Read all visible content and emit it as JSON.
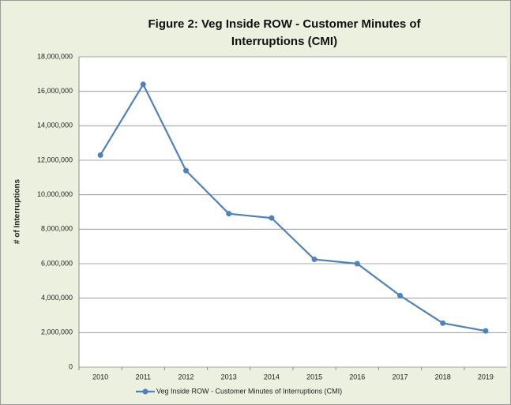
{
  "chart_data": {
    "type": "line",
    "title": "Figure 2:  Veg Inside ROW - Customer Minutes of Interruptions (CMI)",
    "y_label": "# of Interruptions",
    "categories": [
      "2010",
      "2011",
      "2012",
      "2013",
      "2014",
      "2015",
      "2016",
      "2017",
      "2018",
      "2019"
    ],
    "series": [
      {
        "name": "Veg Inside ROW - Customer Minutes of Interruptions (CMI)",
        "color": "#4f81bd",
        "values": [
          12300000,
          16400000,
          11400000,
          8900000,
          8650000,
          6250000,
          6000000,
          4150000,
          2550000,
          2100000
        ]
      }
    ],
    "ylim": [
      0,
      18000000
    ],
    "yticks": [
      0,
      {
        "value": 2000000,
        "label": "2,000,000"
      },
      {
        "value": 4000000,
        "label": "4,000,000"
      },
      {
        "value": 6000000,
        "label": "6,000,000"
      },
      {
        "value": 8000000,
        "label": "8,000,000"
      },
      {
        "value": 10000000,
        "label": "10,000,000"
      },
      {
        "value": 12000000,
        "label": "12,000,000"
      },
      {
        "value": 14000000,
        "label": "14,000,000"
      },
      {
        "value": 16000000,
        "label": "16,000,000"
      },
      {
        "value": 18000000,
        "label": "18,000,000"
      }
    ],
    "grid": true,
    "legend": "bottom"
  }
}
